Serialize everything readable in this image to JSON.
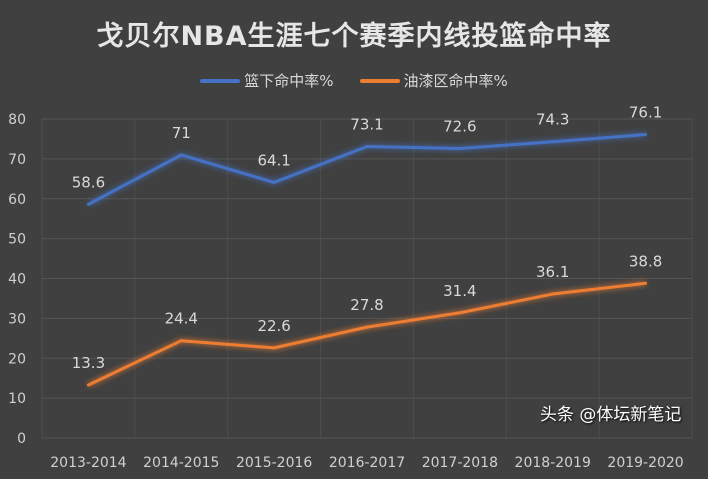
{
  "chart_data": {
    "type": "line",
    "title": "戈贝尔NBA生涯七个赛季内线投篮命中率",
    "categories": [
      "2013-2014",
      "2014-2015",
      "2015-2016",
      "2016-2017",
      "2017-2018",
      "2018-2019",
      "2019-2020"
    ],
    "series": [
      {
        "name": "篮下命中率%",
        "values": [
          58.6,
          71,
          64.1,
          73.1,
          72.6,
          74.3,
          76.1
        ],
        "color": "#4472c4"
      },
      {
        "name": "油漆区命中率%",
        "values": [
          13.3,
          24.4,
          22.6,
          27.8,
          31.4,
          36.1,
          38.8
        ],
        "color": "#ed7d31"
      }
    ],
    "ylim": [
      0,
      80
    ],
    "yticks": [
      0,
      10,
      20,
      30,
      40,
      50,
      60,
      70,
      80
    ],
    "grid": true,
    "legend": "top"
  },
  "watermark": "头条 @体坛新笔记"
}
